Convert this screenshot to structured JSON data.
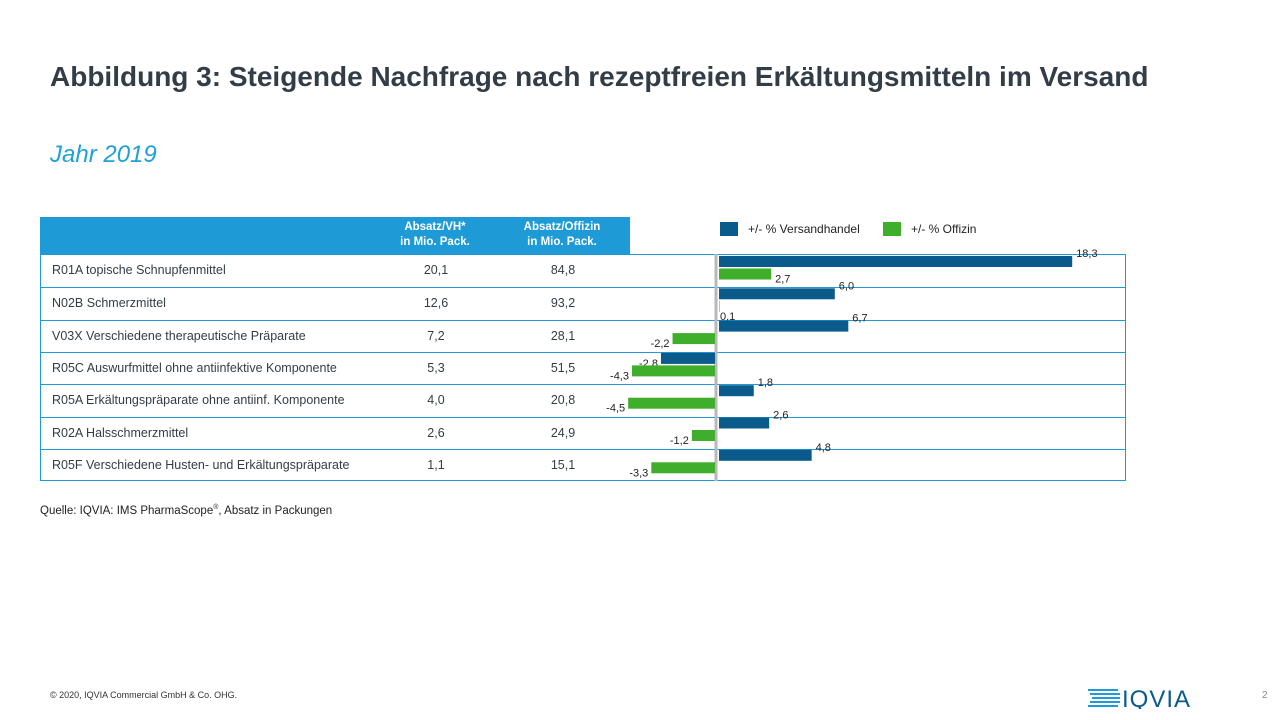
{
  "title": "Abbildung 3: Steigende Nachfrage nach rezeptfreien Erkältungsmitteln im Versand",
  "subtitle": "Jahr 2019",
  "table": {
    "headers": {
      "vh": "Absatz/VH*\nin Mio. Pack.",
      "offizin": "Absatz/Offizin\nin Mio. Pack."
    }
  },
  "legend": {
    "versand": "+/- % Versandhandel",
    "offizin": "+/- % Offizin"
  },
  "colors": {
    "versand": "#0a5a8c",
    "offizin": "#3fae2a",
    "accent": "#1e9bd7"
  },
  "chart_data": {
    "type": "bar",
    "orientation": "horizontal",
    "categories": [
      "R01A  topische Schnupfenmittel",
      "N02B Schmerzmittel",
      "V03X Verschiedene therapeutische Präparate",
      "R05C Auswurfmittel ohne antiinfektive Komponente",
      "R05A Erkältungspräparate ohne antiinf. Komponente",
      "R02A Halsschmerzmittel",
      "R05F Verschiedene Husten- und Erkältungspräparate"
    ],
    "absatz_vh": [
      "20,1",
      "12,6",
      "7,2",
      "5,3",
      "4,0",
      "2,6",
      "1,1"
    ],
    "absatz_offizin": [
      "84,8",
      "93,2",
      "28,1",
      "51,5",
      "20,8",
      "24,9",
      "15,1"
    ],
    "series": [
      {
        "name": "+/- % Versandhandel",
        "values": [
          18.3,
          6.0,
          6.7,
          -2.8,
          1.8,
          2.6,
          4.8
        ]
      },
      {
        "name": "+/- % Offizin",
        "values": [
          2.7,
          0.1,
          -2.2,
          -4.3,
          -4.5,
          -1.2,
          -3.3
        ]
      }
    ],
    "data_labels": [
      [
        "18,3",
        "6,0",
        "6,7",
        "-2,8",
        "1,8",
        "2,6",
        "4,8"
      ],
      [
        "2,7",
        "0,1",
        "-2,2",
        "-4,3",
        "-4,5",
        "-1,2",
        "-3,3"
      ]
    ]
  },
  "source": {
    "text_before": "Quelle: IQVIA:  IMS PharmaScope",
    "registered": "®",
    "text_after": ", Absatz in Packungen"
  },
  "footer": {
    "copyright": "© 2020, IQVIA Commercial GmbH & Co. OHG.",
    "logo": "IQVIA",
    "page": "2"
  }
}
